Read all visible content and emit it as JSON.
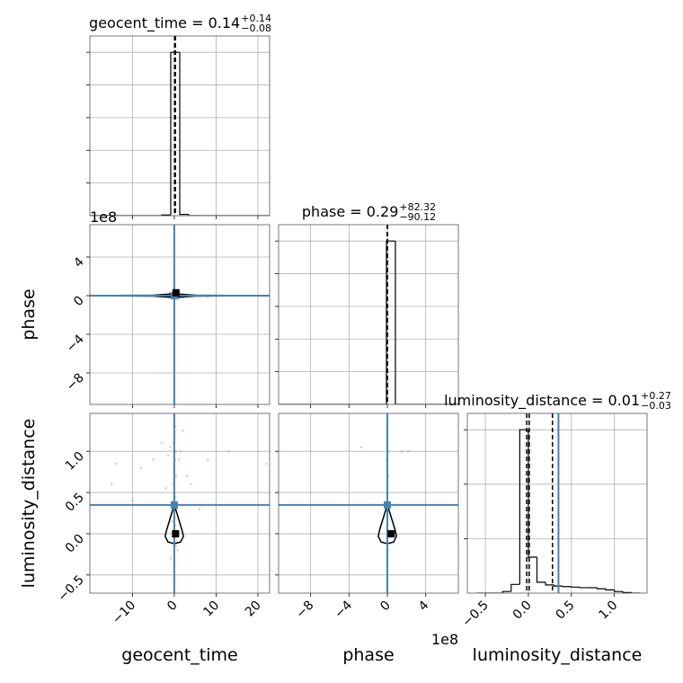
{
  "chart_data": [
    {
      "type": "hist",
      "title": "geocent_time = 0.14",
      "title_sup": "+0.14",
      "title_sub": "−0.08",
      "xlim": [
        -20.2,
        22.8
      ],
      "xticks": [
        {
          "value": -10,
          "label": "−10"
        },
        0,
        10,
        20
      ],
      "xtick_labels": false,
      "ylim": [
        0,
        1.1
      ],
      "yticks": [
        0.2,
        0.4,
        0.6,
        0.8,
        1.0
      ],
      "ytick_labels": false,
      "grid": true,
      "color": "#000000",
      "bins": [
        -20.2,
        -18.05,
        -15.9,
        -13.75,
        -11.6,
        -9.45,
        -7.3,
        -5.15,
        -3.0,
        -0.85,
        1.3,
        3.45,
        5.6,
        7.75,
        9.9,
        12.05,
        14.2,
        16.35,
        18.5,
        20.65,
        22.8
      ],
      "counts": [
        0,
        0,
        0,
        0,
        0,
        0,
        0,
        0,
        0.004,
        1.0,
        0.008,
        0,
        0,
        0,
        0,
        0,
        0,
        0,
        0,
        0
      ],
      "quantiles": [
        0.06,
        0.14,
        0.28
      ]
    },
    {
      "type": "scatter",
      "ylabel": "phase",
      "yoffset": "1e8",
      "xlim": [
        -20.2,
        22.8
      ],
      "xticks": [
        {
          "value": -10,
          "label": "−10"
        },
        0,
        10,
        20
      ],
      "xtick_labels": false,
      "ylim": [
        -11.26,
        7.35
      ],
      "yticks": [
        {
          "value": -8,
          "label": "−8"
        },
        {
          "value": -4,
          "label": "−4"
        },
        0,
        4
      ],
      "ytick_labels": true,
      "grid": true,
      "point_color": "#808080",
      "truth_color": "#4682b4",
      "color": "#000000",
      "x": [
        -3,
        2,
        5,
        -1,
        8,
        -6,
        1,
        0.5,
        -0.4,
        0.2,
        3,
        -2
      ],
      "y": [
        0.1,
        -0.2,
        0.05,
        0.3,
        -0.1,
        0.0,
        -0.4,
        0.2,
        0.15,
        -0.1,
        0.02,
        -0.05
      ],
      "contour_x": [
        -20,
        -5,
        0,
        5,
        22,
        5,
        0,
        -5,
        -20
      ],
      "contour_y": [
        0.0,
        0.05,
        0.2,
        0.05,
        0.0,
        -0.05,
        -0.2,
        -0.05,
        0.0
      ],
      "truths": [
        0,
        0
      ],
      "max_point": [
        0.4,
        0.3
      ]
    },
    {
      "type": "hist",
      "title": "phase = 0.29",
      "title_sup": "+82.32",
      "title_sub": "−90.12",
      "xlim": [
        -11.34,
        7.4
      ],
      "xticks": [
        {
          "value": -8,
          "label": "−8"
        },
        {
          "value": -4,
          "label": "−4"
        },
        0,
        4
      ],
      "xtick_labels": false,
      "ylim": [
        0,
        1.1
      ],
      "yticks": [
        0.2,
        0.4,
        0.6,
        0.8,
        1.0
      ],
      "ytick_labels": false,
      "grid": true,
      "color": "#000000",
      "bins": [
        -11.34,
        -10.403,
        -9.466,
        -8.529,
        -7.592,
        -6.655,
        -5.718,
        -4.781,
        -3.844,
        -2.907,
        -1.97,
        -1.033,
        -0.096,
        0.841,
        1.778,
        2.715,
        3.652,
        4.589,
        5.526,
        6.463,
        7.4
      ],
      "counts": [
        0,
        0,
        0,
        0,
        0,
        0,
        0,
        0,
        0,
        0,
        0,
        0,
        1.0,
        0,
        0,
        0,
        0,
        0,
        0,
        0
      ],
      "quantiles": [
        -8.98e-07,
        2.9e-09,
        8.26e-07
      ]
    },
    {
      "type": "scatter",
      "xlabel": "geocent_time",
      "ylabel": "luminosity_distance",
      "xlim": [
        -20.2,
        22.8
      ],
      "xticks": [
        {
          "value": -10,
          "label": "−10"
        },
        0,
        10,
        20
      ],
      "xtick_labels": true,
      "ylim": [
        -0.72,
        1.46
      ],
      "yticks": [
        {
          "value": -0.5,
          "label": "−0.5"
        },
        {
          "value": 0,
          "label": "0.0"
        },
        0.5,
        {
          "value": 1,
          "label": "1.0"
        }
      ],
      "ytick_labels": true,
      "grid": true,
      "point_color": "#808080",
      "truth_color": "#4682b4",
      "color": "#000000",
      "x": [
        0.1,
        -0.3,
        0.4,
        0.2,
        -0.1,
        0.5,
        -0.4,
        0.0,
        0.3,
        -0.2,
        0.6,
        -0.6,
        0.1,
        -0.5,
        0.2,
        0.0,
        -0.2,
        0.4,
        0.8,
        -0.8,
        1.2,
        -1.0,
        0.3,
        -0.1,
        -15,
        -14,
        -8,
        -5,
        4,
        8,
        13,
        -10,
        6,
        -3,
        2,
        22,
        -2,
        3,
        1.5,
        -1.5
      ],
      "y": [
        1.2,
        1.1,
        1.0,
        0.9,
        0.8,
        0.7,
        0.6,
        0.5,
        0.45,
        0.4,
        0.3,
        0.25,
        0.2,
        0.15,
        0.1,
        0.05,
        -0.05,
        -0.15,
        -0.2,
        -0.3,
        0.9,
        1.05,
        1.3,
        0.75,
        0.6,
        0.85,
        0.8,
        0.9,
        0.6,
        0.9,
        1.0,
        0.4,
        0.3,
        1.1,
        1.25,
        0.85,
        0.55,
        0.7,
        1.0,
        0.95
      ],
      "contour_x": [
        0,
        0.8,
        1.8,
        2.2,
        1.5,
        0,
        -1.5,
        -2.2,
        -1.8,
        -0.8,
        0
      ],
      "contour_y": [
        0.35,
        0.22,
        0.05,
        -0.03,
        -0.1,
        -0.12,
        -0.1,
        -0.03,
        0.05,
        0.22,
        0.35
      ],
      "truths": [
        0,
        0.35
      ],
      "max_point": [
        0.3,
        0.0
      ]
    },
    {
      "type": "scatter",
      "xlabel": "phase",
      "xoffset": "1e8",
      "xlim": [
        -11.34,
        7.4
      ],
      "xticks": [
        {
          "value": -8,
          "label": "−8"
        },
        {
          "value": -4,
          "label": "−4"
        },
        0,
        4
      ],
      "xtick_labels": true,
      "ylim": [
        -0.72,
        1.46
      ],
      "yticks": [
        {
          "value": -0.5,
          "label": "−0.5"
        },
        {
          "value": 0,
          "label": "0.0"
        },
        0.5,
        {
          "value": 1,
          "label": "1.0"
        }
      ],
      "ytick_labels": false,
      "grid": true,
      "point_color": "#808080",
      "truth_color": "#4682b4",
      "color": "#000000",
      "x": [
        0.0,
        0.05,
        -0.05,
        0.02,
        -0.02,
        0.0,
        0.03,
        -0.03,
        0.01,
        -2.7,
        1.5,
        2.2,
        -0.1,
        0.1
      ],
      "y": [
        1.2,
        1.0,
        0.8,
        0.6,
        0.4,
        0.2,
        0.0,
        -0.2,
        1.35,
        1.05,
        1.0,
        1.0,
        0.9,
        0.7
      ],
      "contour_x": [
        0,
        0.35,
        0.8,
        0.95,
        0.65,
        0,
        -0.65,
        -0.95,
        -0.8,
        -0.35,
        0
      ],
      "contour_y": [
        0.35,
        0.22,
        0.05,
        -0.03,
        -0.1,
        -0.12,
        -0.1,
        -0.03,
        0.05,
        0.22,
        0.35
      ],
      "truths": [
        0,
        0.35
      ],
      "max_point": [
        0.4,
        0.0
      ]
    },
    {
      "type": "hist",
      "title": "luminosity_distance = 0.01",
      "title_sup": "+0.27",
      "title_sub": "−0.03",
      "xlabel": "luminosity_distance",
      "xlim": [
        -0.71,
        1.38
      ],
      "xticks": [
        {
          "value": -0.5,
          "label": "−0.5"
        },
        {
          "value": 0,
          "label": "0.0"
        },
        0.5,
        {
          "value": 1,
          "label": "1.0"
        }
      ],
      "xtick_labels": true,
      "ylim": [
        0,
        3.3
      ],
      "yticks": [
        1,
        2,
        3
      ],
      "ytick_labels": false,
      "grid": true,
      "color": "#000000",
      "truth_color": "#4682b4",
      "bins": [
        -0.6,
        -0.5,
        -0.4,
        -0.3,
        -0.2,
        -0.1,
        0.0,
        0.1,
        0.2,
        0.3,
        0.4,
        0.5,
        0.6,
        0.7,
        0.8,
        0.9,
        1.0,
        1.1,
        1.2,
        1.3
      ],
      "counts": [
        0,
        0,
        0,
        0.03,
        0.16,
        3.0,
        0.66,
        0.2,
        0.15,
        0.13,
        0.12,
        0.11,
        0.1,
        0.1,
        0.08,
        0.06,
        0.03,
        0.01,
        0
      ],
      "quantiles": [
        -0.02,
        0.01,
        0.28
      ],
      "truth": 0.35
    }
  ]
}
